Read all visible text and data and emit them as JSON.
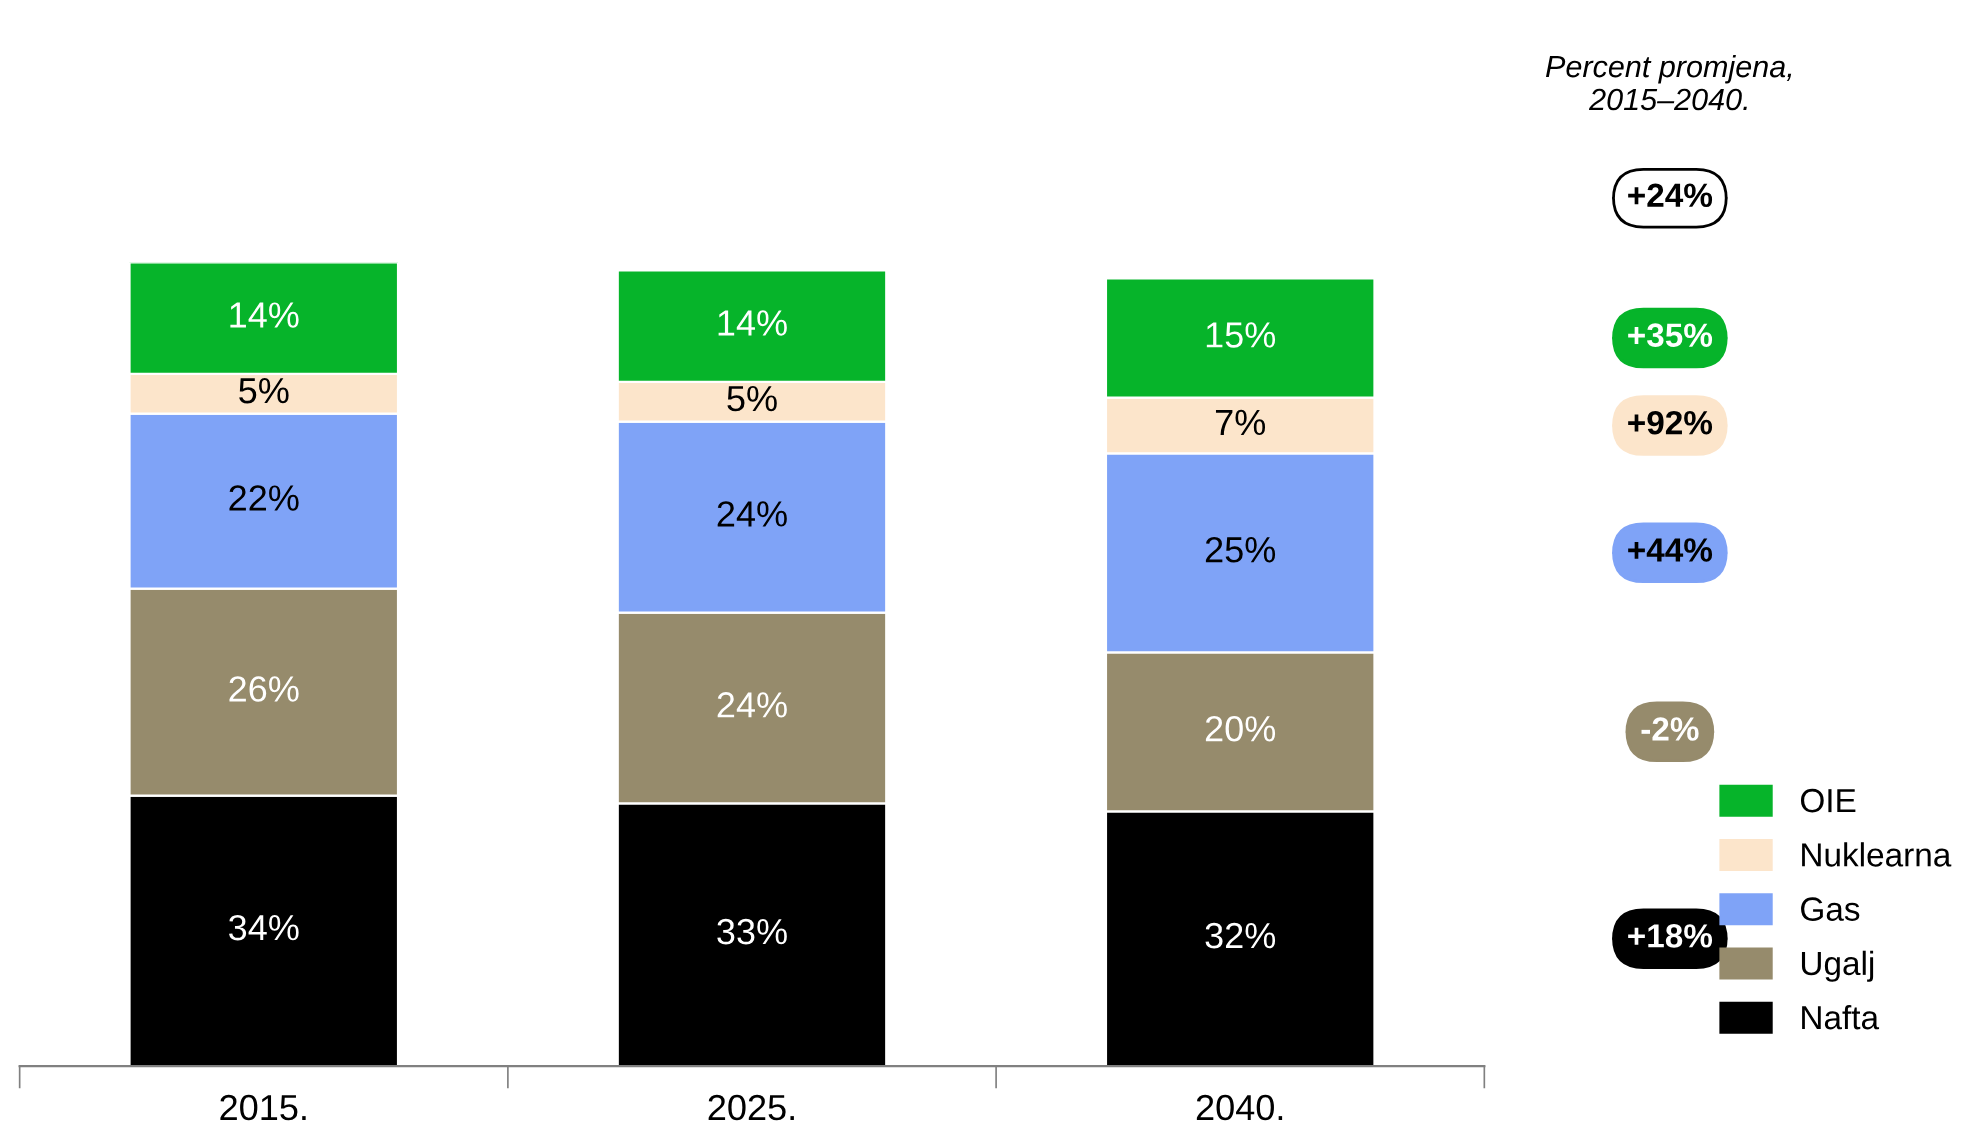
{
  "chart_data": {
    "type": "bar",
    "stacked": true,
    "tick_labels": "x",
    "categories": [
      "2015.",
      "2025.",
      "2040."
    ],
    "series": [
      {
        "name": "Nafta",
        "color": "#000000",
        "values": [
          34,
          33,
          32
        ],
        "value_labels": [
          "34%",
          "33%",
          "32%"
        ]
      },
      {
        "name": "Ugalj",
        "color": "#968b6c",
        "values": [
          26,
          24,
          20
        ],
        "value_labels": [
          "26%",
          "24%",
          "20%"
        ]
      },
      {
        "name": "Gas",
        "color": "#7fa3f7",
        "values": [
          22,
          24,
          25
        ],
        "value_labels": [
          "22%",
          "24%",
          "25%"
        ]
      },
      {
        "name": "Nuklearna",
        "color": "#fce5cb",
        "values": [
          5,
          5,
          7
        ],
        "value_labels": [
          "5%",
          "5%",
          "7%"
        ]
      },
      {
        "name": "OIE",
        "color": "#06b42a",
        "values": [
          14,
          14,
          15
        ],
        "value_labels": [
          "14%",
          "14%",
          "15%"
        ]
      }
    ],
    "annotations": [
      "Percent promjena,\n2015–2040.",
      "+24%",
      "+35%",
      "+92%",
      "+44%",
      "-2%",
      "+18%"
    ],
    "legend": "bottom right",
    "grid": false
  }
}
